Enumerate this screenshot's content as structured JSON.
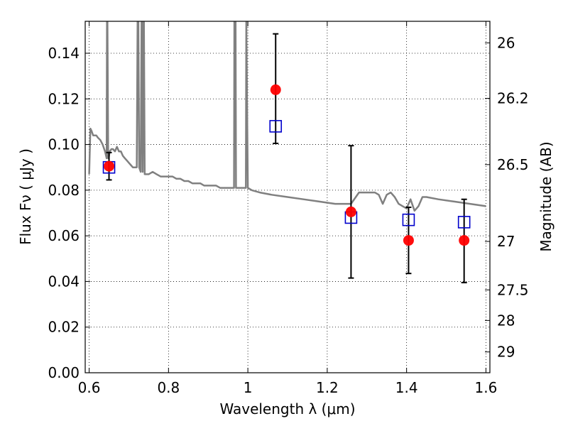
{
  "chart_data": {
    "type": "scatter",
    "xlabel": "Wavelength  λ (μm)",
    "ylabel": "Flux  Fν  ( μJy )",
    "y2label": "Magnitude (AB)",
    "xlim": [
      0.59,
      1.61
    ],
    "ylim": [
      0.0,
      0.154
    ],
    "grid": true,
    "x_ticks": [
      {
        "value": 0.6,
        "label": "0.6"
      },
      {
        "value": 0.8,
        "label": "0.8"
      },
      {
        "value": 1.0,
        "label": "1"
      },
      {
        "value": 1.2,
        "label": "1.2"
      },
      {
        "value": 1.4,
        "label": "1.4"
      },
      {
        "value": 1.6,
        "label": "1.6"
      }
    ],
    "y_ticks": [
      {
        "value": 0.0,
        "label": "0.00"
      },
      {
        "value": 0.02,
        "label": "0.02"
      },
      {
        "value": 0.04,
        "label": "0.04"
      },
      {
        "value": 0.06,
        "label": "0.06"
      },
      {
        "value": 0.08,
        "label": "0.08"
      },
      {
        "value": 0.1,
        "label": "0.10"
      },
      {
        "value": 0.12,
        "label": "0.12"
      },
      {
        "value": 0.14,
        "label": "0.14"
      }
    ],
    "y2_ticks": [
      {
        "mag": 26,
        "label": "26"
      },
      {
        "mag": 26.2,
        "label": "26.2"
      },
      {
        "mag": 26.5,
        "label": "26.5"
      },
      {
        "mag": 27,
        "label": "27"
      },
      {
        "mag": 27.5,
        "label": "27.5"
      },
      {
        "mag": 28,
        "label": "28"
      },
      {
        "mag": 29,
        "label": "29"
      }
    ],
    "series": [
      {
        "kind": "model_spectrum",
        "color": "#808080",
        "x": [
          0.6,
          0.603,
          0.606,
          0.61,
          0.613,
          0.618,
          0.622,
          0.628,
          0.634,
          0.64,
          0.644,
          0.645,
          0.646,
          0.648,
          0.649,
          0.652,
          0.656,
          0.66,
          0.665,
          0.67,
          0.675,
          0.68,
          0.685,
          0.69,
          0.695,
          0.7,
          0.705,
          0.71,
          0.715,
          0.72,
          0.722,
          0.723,
          0.724,
          0.726,
          0.73,
          0.732,
          0.733,
          0.735,
          0.737,
          0.738,
          0.74,
          0.742,
          0.75,
          0.76,
          0.77,
          0.78,
          0.79,
          0.8,
          0.81,
          0.82,
          0.83,
          0.84,
          0.85,
          0.86,
          0.87,
          0.88,
          0.89,
          0.9,
          0.91,
          0.92,
          0.93,
          0.94,
          0.95,
          0.96,
          0.965,
          0.966,
          0.969,
          0.97,
          0.972,
          0.975,
          0.99,
          0.995,
          0.996,
          1.0,
          1.01,
          1.03,
          1.06,
          1.1,
          1.14,
          1.18,
          1.22,
          1.26,
          1.28,
          1.3,
          1.32,
          1.33,
          1.34,
          1.35,
          1.36,
          1.37,
          1.38,
          1.39,
          1.4,
          1.41,
          1.42,
          1.43,
          1.44,
          1.45,
          1.48,
          1.52,
          1.56,
          1.6
        ],
        "y": [
          0.087,
          0.107,
          0.106,
          0.104,
          0.104,
          0.104,
          0.103,
          0.102,
          0.1,
          0.097,
          0.094,
          0.155,
          0.155,
          0.094,
          0.094,
          0.097,
          0.098,
          0.098,
          0.097,
          0.099,
          0.097,
          0.097,
          0.095,
          0.094,
          0.093,
          0.092,
          0.091,
          0.09,
          0.09,
          0.09,
          0.155,
          0.155,
          0.155,
          0.09,
          0.088,
          0.155,
          0.155,
          0.088,
          0.155,
          0.155,
          0.087,
          0.087,
          0.087,
          0.088,
          0.087,
          0.086,
          0.086,
          0.086,
          0.086,
          0.085,
          0.085,
          0.084,
          0.084,
          0.083,
          0.083,
          0.083,
          0.082,
          0.082,
          0.082,
          0.082,
          0.081,
          0.081,
          0.081,
          0.081,
          0.081,
          0.155,
          0.155,
          0.081,
          0.081,
          0.081,
          0.081,
          0.081,
          0.155,
          0.081,
          0.08,
          0.079,
          0.078,
          0.077,
          0.076,
          0.075,
          0.074,
          0.074,
          0.079,
          0.079,
          0.079,
          0.078,
          0.074,
          0.078,
          0.079,
          0.077,
          0.074,
          0.073,
          0.072,
          0.076,
          0.071,
          0.073,
          0.077,
          0.077,
          0.076,
          0.075,
          0.074,
          0.073
        ]
      },
      {
        "kind": "model_photometry",
        "marker": "open-square",
        "color": "#0000cc",
        "x": [
          0.65,
          1.07,
          1.26,
          1.405,
          1.545
        ],
        "y": [
          0.09,
          0.108,
          0.068,
          0.067,
          0.066
        ]
      },
      {
        "kind": "observed_photometry",
        "marker": "filled-circle",
        "color": "#ff0000",
        "x": [
          0.65,
          1.07,
          1.26,
          1.405,
          1.545
        ],
        "y": [
          0.0905,
          0.124,
          0.0705,
          0.058,
          0.058
        ],
        "yerr_low": [
          0.0845,
          0.1005,
          0.0415,
          0.0435,
          0.0395
        ],
        "yerr_high": [
          0.0965,
          0.1485,
          0.0995,
          0.0725,
          0.076
        ]
      }
    ]
  }
}
